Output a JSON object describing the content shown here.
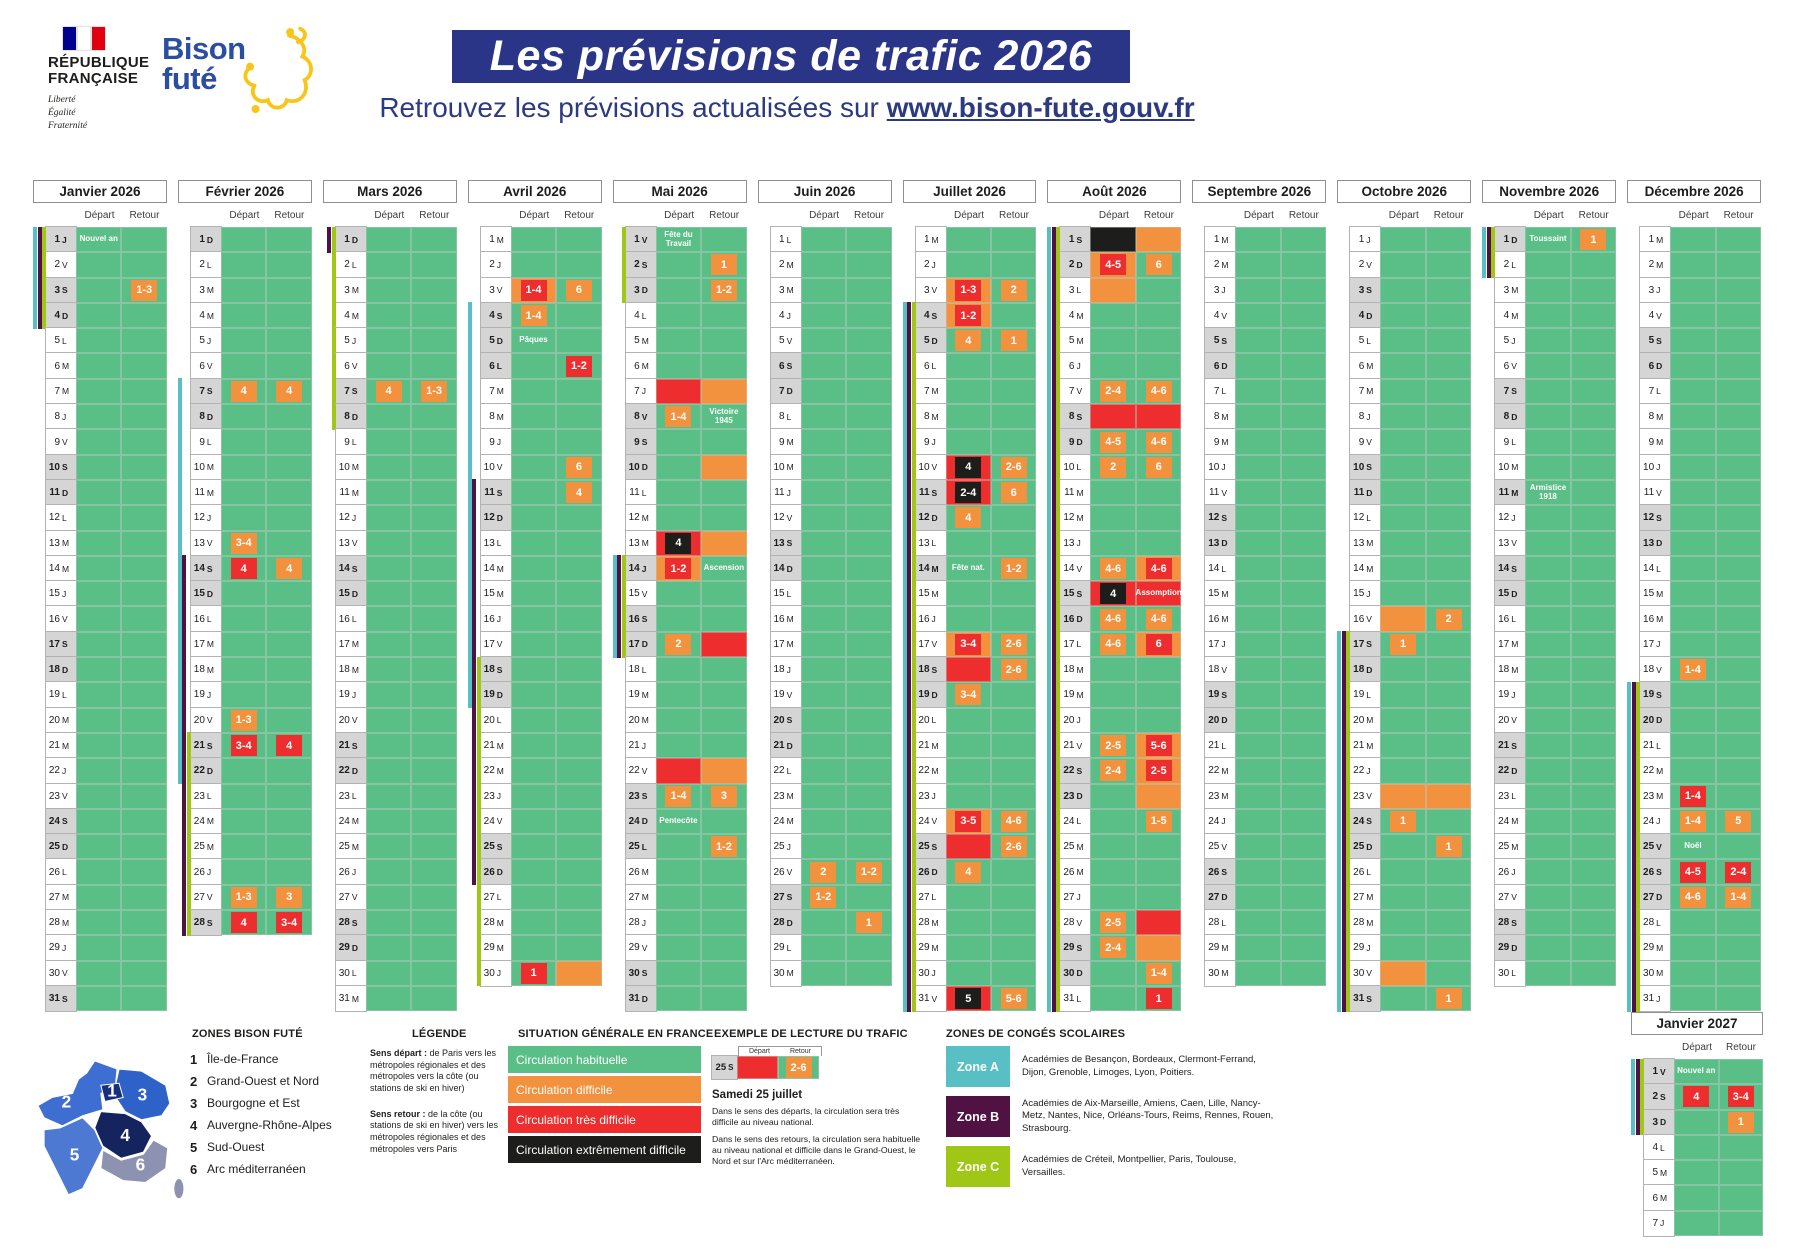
{
  "header": {
    "title": "Les prévisions de trafic 2026",
    "subtitle_prefix": "Retrouvez les prévisions actualisées sur ",
    "subtitle_link": "www.bison-fute.gouv.fr",
    "rf_logo": {
      "line1": "RÉPUBLIQUE",
      "line2": "FRANÇAISE",
      "motto1": "Liberté",
      "motto2": "Égalité",
      "motto3": "Fraternité"
    },
    "bison_logo": {
      "line1": "Bison",
      "line2": "futé"
    }
  },
  "colors": {
    "green": "#5abf87",
    "orange": "#f3923e",
    "red": "#ee2e2e",
    "black": "#1d1d1b",
    "day_off_bg": "#d5d5d5",
    "banner_blue": "#2b3588",
    "zone_a": "#58bfc4",
    "zone_b": "#4f1243",
    "zone_c": "#a0c715"
  },
  "calendar": {
    "depart": "Départ",
    "retour": "Retour",
    "weekday_letters": [
      "L",
      "M",
      "M",
      "J",
      "V",
      "S",
      "D"
    ]
  },
  "months": [
    {
      "title": "Janvier 2026",
      "start": 3,
      "days": 31,
      "hol": [
        1
      ],
      "bars": {
        "A": [
          [
            1,
            4
          ]
        ],
        "B": [
          [
            1,
            4
          ]
        ],
        "C": [
          [
            1,
            4
          ]
        ]
      },
      "e": {
        "1": {
          "d": {
            "tx": "Nouvel an"
          }
        },
        "3": {
          "r": {
            "b": "o",
            "t": "1-3"
          }
        }
      }
    },
    {
      "title": "Février 2026",
      "start": 6,
      "days": 28,
      "hol": [],
      "bars": {
        "A": [
          [
            7,
            22
          ]
        ],
        "B": [
          [
            14,
            28
          ]
        ],
        "C": [
          [
            21,
            28
          ]
        ]
      },
      "e": {
        "7": {
          "d": {
            "b": "o",
            "t": "4"
          },
          "r": {
            "b": "o",
            "t": "4"
          }
        },
        "13": {
          "d": {
            "b": "o",
            "t": "3-4"
          }
        },
        "14": {
          "d": {
            "b": "r",
            "t": "4"
          },
          "r": {
            "b": "o",
            "t": "4"
          }
        },
        "20": {
          "d": {
            "b": "o",
            "t": "1-3"
          }
        },
        "21": {
          "d": {
            "b": "r",
            "t": "3-4"
          },
          "r": {
            "b": "r",
            "t": "4"
          }
        },
        "27": {
          "d": {
            "b": "o",
            "t": "1-3"
          },
          "r": {
            "b": "o",
            "t": "3"
          }
        },
        "28": {
          "d": {
            "b": "r",
            "t": "4"
          },
          "r": {
            "b": "r",
            "t": "3-4"
          }
        }
      }
    },
    {
      "title": "Mars 2026",
      "start": 6,
      "days": 31,
      "hol": [],
      "bars": {
        "B": [
          [
            1,
            1
          ]
        ],
        "C": [
          [
            1,
            8
          ]
        ]
      },
      "e": {
        "7": {
          "d": {
            "b": "o",
            "t": "4"
          },
          "r": {
            "b": "o",
            "t": "1-3"
          }
        }
      }
    },
    {
      "title": "Avril 2026",
      "start": 2,
      "days": 30,
      "hol": [
        6
      ],
      "bars": {
        "A": [
          [
            4,
            19
          ]
        ],
        "B": [
          [
            11,
            26
          ]
        ],
        "C": [
          [
            18,
            30
          ]
        ]
      },
      "e": {
        "3": {
          "d": {
            "bg": "o",
            "b": "r",
            "t": "1-4"
          },
          "r": {
            "b": "o",
            "t": "6"
          }
        },
        "4": {
          "d": {
            "b": "o",
            "t": "1-4"
          }
        },
        "5": {
          "d": {
            "tx": "Pâques"
          }
        },
        "6": {
          "r": {
            "b": "r",
            "t": "1-2"
          }
        },
        "10": {
          "r": {
            "b": "o",
            "t": "6"
          }
        },
        "11": {
          "r": {
            "b": "o",
            "t": "4"
          }
        },
        "30": {
          "d": {
            "b": "r",
            "t": "1"
          },
          "r": {
            "bg": "o"
          }
        }
      }
    },
    {
      "title": "Mai 2026",
      "start": 4,
      "days": 31,
      "hol": [
        1,
        8,
        14,
        25
      ],
      "bars": {
        "A": [
          [
            14,
            17
          ]
        ],
        "B": [
          [
            14,
            17
          ]
        ],
        "C": [
          [
            1,
            3
          ],
          [
            14,
            17
          ]
        ]
      },
      "e": {
        "1": {
          "d": {
            "tx": "Fête du Travail"
          }
        },
        "2": {
          "r": {
            "b": "o",
            "t": "1"
          }
        },
        "3": {
          "r": {
            "b": "o",
            "t": "1-2"
          }
        },
        "7": {
          "d": {
            "bg": "r"
          },
          "r": {
            "bg": "o"
          }
        },
        "8": {
          "d": {
            "b": "o",
            "t": "1-4"
          },
          "r": {
            "tx": "Victoire 1945"
          }
        },
        "10": {
          "r": {
            "bg": "o"
          }
        },
        "13": {
          "d": {
            "bg": "r",
            "b": "k",
            "t": "4"
          },
          "r": {
            "bg": "o"
          }
        },
        "14": {
          "d": {
            "bg": "o",
            "b": "r",
            "t": "1-2"
          },
          "r": {
            "tx": "Ascension"
          }
        },
        "17": {
          "d": {
            "b": "o",
            "t": "2"
          },
          "r": {
            "bg": "r"
          }
        },
        "22": {
          "d": {
            "bg": "r"
          },
          "r": {
            "bg": "o"
          }
        },
        "23": {
          "d": {
            "b": "o",
            "t": "1-4"
          },
          "r": {
            "b": "o",
            "t": "3"
          }
        },
        "24": {
          "d": {
            "tx": "Pentecôte"
          }
        },
        "25": {
          "r": {
            "b": "o",
            "t": "1-2"
          }
        }
      }
    },
    {
      "title": "Juin 2026",
      "start": 0,
      "days": 30,
      "hol": [],
      "bars": {},
      "e": {
        "26": {
          "d": {
            "b": "o",
            "t": "2"
          },
          "r": {
            "b": "o",
            "t": "1-2"
          }
        },
        "27": {
          "d": {
            "b": "o",
            "t": "1-2"
          }
        },
        "28": {
          "r": {
            "b": "o",
            "t": "1"
          }
        }
      }
    },
    {
      "title": "Juillet 2026",
      "start": 2,
      "days": 31,
      "hol": [
        14
      ],
      "bars": {
        "A": [
          [
            4,
            31
          ]
        ],
        "B": [
          [
            4,
            31
          ]
        ],
        "C": [
          [
            4,
            31
          ]
        ]
      },
      "e": {
        "3": {
          "d": {
            "bg": "o",
            "b": "r",
            "t": "1-3"
          },
          "r": {
            "b": "o",
            "t": "2"
          }
        },
        "4": {
          "d": {
            "bg": "o",
            "b": "r",
            "t": "1-2"
          }
        },
        "5": {
          "d": {
            "b": "o",
            "t": "4"
          },
          "r": {
            "b": "o",
            "t": "1"
          }
        },
        "10": {
          "d": {
            "bg": "r",
            "b": "k",
            "t": "4"
          },
          "r": {
            "b": "o",
            "t": "2-6"
          }
        },
        "11": {
          "d": {
            "bg": "r",
            "b": "k",
            "t": "2-4"
          },
          "r": {
            "b": "o",
            "t": "6"
          }
        },
        "12": {
          "d": {
            "b": "o",
            "t": "4"
          }
        },
        "14": {
          "d": {
            "tx": "Fête nat."
          },
          "r": {
            "b": "o",
            "t": "1-2"
          }
        },
        "17": {
          "d": {
            "bg": "o",
            "b": "r",
            "t": "3-4"
          },
          "r": {
            "b": "o",
            "t": "2-6"
          }
        },
        "18": {
          "d": {
            "bg": "r"
          },
          "r": {
            "b": "o",
            "t": "2-6"
          }
        },
        "19": {
          "d": {
            "b": "o",
            "t": "3-4"
          }
        },
        "24": {
          "d": {
            "bg": "o",
            "b": "r",
            "t": "3-5"
          },
          "r": {
            "b": "o",
            "t": "4-6"
          }
        },
        "25": {
          "d": {
            "bg": "r"
          },
          "r": {
            "b": "o",
            "t": "2-6"
          }
        },
        "26": {
          "d": {
            "b": "o",
            "t": "4"
          }
        },
        "31": {
          "d": {
            "bg": "r",
            "b": "k",
            "t": "5"
          },
          "r": {
            "b": "o",
            "t": "5-6"
          }
        }
      }
    },
    {
      "title": "Août 2026",
      "start": 5,
      "days": 31,
      "hol": [
        15
      ],
      "bars": {
        "A": [
          [
            1,
            31
          ]
        ],
        "B": [
          [
            1,
            31
          ]
        ],
        "C": [
          [
            1,
            31
          ]
        ]
      },
      "e": {
        "1": {
          "d": {
            "bg": "k"
          },
          "r": {
            "bg": "o"
          }
        },
        "2": {
          "d": {
            "bg": "o",
            "b": "r",
            "t": "4-5"
          },
          "r": {
            "b": "o",
            "t": "6"
          }
        },
        "3": {
          "d": {
            "bg": "o"
          }
        },
        "7": {
          "d": {
            "b": "o",
            "t": "2-4"
          },
          "r": {
            "b": "o",
            "t": "4-6"
          }
        },
        "8": {
          "d": {
            "bg": "r"
          },
          "r": {
            "bg": "r"
          }
        },
        "9": {
          "d": {
            "b": "o",
            "t": "4-5"
          },
          "r": {
            "b": "o",
            "t": "4-6"
          }
        },
        "10": {
          "d": {
            "b": "o",
            "t": "2"
          },
          "r": {
            "b": "o",
            "t": "6"
          }
        },
        "14": {
          "d": {
            "b": "o",
            "t": "4-6"
          },
          "r": {
            "bg": "o",
            "b": "r",
            "t": "4-6"
          }
        },
        "15": {
          "d": {
            "bg": "r",
            "b": "k",
            "t": "4"
          },
          "r": {
            "bg": "r",
            "tx": "Assomption"
          }
        },
        "16": {
          "d": {
            "b": "o",
            "t": "4-6"
          },
          "r": {
            "b": "o",
            "t": "4-6"
          }
        },
        "17": {
          "d": {
            "b": "o",
            "t": "4-6"
          },
          "r": {
            "bg": "o",
            "b": "r",
            "t": "6"
          }
        },
        "21": {
          "d": {
            "b": "o",
            "t": "2-5"
          },
          "r": {
            "bg": "o",
            "b": "r",
            "t": "5-6"
          }
        },
        "22": {
          "d": {
            "b": "o",
            "t": "2-4"
          },
          "r": {
            "bg": "o",
            "b": "r",
            "t": "2-5"
          }
        },
        "23": {
          "r": {
            "bg": "o"
          }
        },
        "24": {
          "r": {
            "b": "o",
            "t": "1-5"
          }
        },
        "28": {
          "d": {
            "b": "o",
            "t": "2-5"
          },
          "r": {
            "bg": "r"
          }
        },
        "29": {
          "d": {
            "b": "o",
            "t": "2-4"
          },
          "r": {
            "bg": "o"
          }
        },
        "30": {
          "r": {
            "b": "o",
            "t": "1-4"
          }
        },
        "31": {
          "r": {
            "b": "r",
            "t": "1"
          }
        }
      }
    },
    {
      "title": "Septembre 2026",
      "start": 1,
      "days": 30,
      "hol": [],
      "bars": {},
      "e": {}
    },
    {
      "title": "Octobre 2026",
      "start": 3,
      "days": 31,
      "hol": [],
      "bars": {
        "A": [
          [
            17,
            31
          ]
        ],
        "B": [
          [
            17,
            31
          ]
        ],
        "C": [
          [
            17,
            31
          ]
        ]
      },
      "e": {
        "16": {
          "d": {
            "bg": "o"
          },
          "r": {
            "b": "o",
            "t": "2"
          }
        },
        "17": {
          "d": {
            "b": "o",
            "t": "1"
          }
        },
        "23": {
          "d": {
            "bg": "o"
          },
          "r": {
            "bg": "o"
          }
        },
        "24": {
          "d": {
            "b": "o",
            "t": "1"
          }
        },
        "25": {
          "r": {
            "b": "o",
            "t": "1"
          }
        },
        "30": {
          "d": {
            "bg": "o"
          }
        },
        "31": {
          "r": {
            "b": "o",
            "t": "1"
          }
        }
      }
    },
    {
      "title": "Novembre 2026",
      "start": 6,
      "days": 30,
      "hol": [
        1,
        11
      ],
      "bars": {
        "A": [
          [
            1,
            2
          ]
        ],
        "B": [
          [
            1,
            2
          ]
        ],
        "C": [
          [
            1,
            2
          ]
        ]
      },
      "e": {
        "1": {
          "d": {
            "tx": "Toussaint"
          },
          "r": {
            "b": "o",
            "t": "1"
          }
        },
        "11": {
          "d": {
            "tx": "Armistice 1918"
          }
        }
      }
    },
    {
      "title": "Décembre 2026",
      "start": 1,
      "days": 31,
      "hol": [
        25
      ],
      "bars": {
        "A": [
          [
            19,
            31
          ]
        ],
        "B": [
          [
            19,
            31
          ]
        ],
        "C": [
          [
            19,
            31
          ]
        ]
      },
      "e": {
        "18": {
          "d": {
            "b": "o",
            "t": "1-4"
          }
        },
        "23": {
          "d": {
            "b": "r",
            "t": "1-4"
          }
        },
        "24": {
          "d": {
            "b": "o",
            "t": "1-4"
          },
          "r": {
            "b": "o",
            "t": "5"
          }
        },
        "25": {
          "d": {
            "tx": "Noël"
          }
        },
        "26": {
          "d": {
            "b": "r",
            "t": "4-5"
          },
          "r": {
            "b": "r",
            "t": "2-4"
          }
        },
        "27": {
          "d": {
            "b": "o",
            "t": "4-6"
          },
          "r": {
            "b": "o",
            "t": "1-4"
          }
        }
      }
    },
    {
      "title": "Janvier 2027",
      "start": 4,
      "days": 7,
      "hol": [
        1
      ],
      "mini": true,
      "bars": {
        "A": [
          [
            1,
            3
          ]
        ],
        "B": [
          [
            1,
            3
          ]
        ],
        "C": [
          [
            1,
            3
          ]
        ]
      },
      "e": {
        "1": {
          "d": {
            "tx": "Nouvel an"
          }
        },
        "2": {
          "d": {
            "b": "r",
            "t": "4"
          },
          "r": {
            "b": "r",
            "t": "3-4"
          }
        },
        "3": {
          "r": {
            "b": "o",
            "t": "1"
          }
        }
      }
    }
  ],
  "zones_bison": {
    "title": "ZONES BISON FUTÉ",
    "items": [
      {
        "n": "1",
        "label": "Île-de-France"
      },
      {
        "n": "2",
        "label": "Grand-Ouest et Nord"
      },
      {
        "n": "3",
        "label": "Bourgogne et Est"
      },
      {
        "n": "4",
        "label": "Auvergne-Rhône-Alpes"
      },
      {
        "n": "5",
        "label": "Sud-Ouest"
      },
      {
        "n": "6",
        "label": "Arc méditerranéen"
      }
    ]
  },
  "legende": {
    "title": "LÉGENDE",
    "p1_bold": "Sens départ :",
    "p1": " de Paris vers les métropoles régionales et des métropoles vers la côte (ou stations de ski en hiver)",
    "p2_bold": "Sens retour :",
    "p2": " de la côte (ou stations de ski en hiver) vers les métropoles régionales et des métropoles vers Paris"
  },
  "situation": {
    "title": "SITUATION GÉNÉRALE EN FRANCE",
    "rows": [
      {
        "color": "green",
        "label": "Circulation habituelle"
      },
      {
        "color": "orange",
        "label": "Circulation difficile"
      },
      {
        "color": "red",
        "label": "Circulation très difficile"
      },
      {
        "color": "black",
        "label": "Circulation extrêmement difficile"
      }
    ]
  },
  "example": {
    "title": "EXEMPLE DE LECTURE DU TRAFIC",
    "day": "25",
    "weekday": "S",
    "retour_badge": "2-6",
    "caption": "Samedi 25 juillet",
    "p1": "Dans le sens des départs, la circulation sera très difficile au niveau national.",
    "p2": "Dans le sens des retours, la circulation sera habituelle au niveau national et difficile dans le Grand-Ouest, le Nord et sur l'Arc méditerranéen."
  },
  "conges": {
    "title": "ZONES DE CONGÉS SCOLAIRES",
    "zones": [
      {
        "label": "Zone A",
        "color": "zone_a",
        "text": "Académies de Besançon, Bordeaux, Clermont-Ferrand, Dijon, Grenoble, Limoges, Lyon, Poitiers."
      },
      {
        "label": "Zone B",
        "color": "zone_b",
        "text": "Académies de Aix-Marseille, Amiens, Caen, Lille, Nancy-Metz, Nantes, Nice, Orléans-Tours, Reims, Rennes, Rouen, Strasbourg."
      },
      {
        "label": "Zone C",
        "color": "zone_c",
        "text": "Académies de Créteil, Montpellier, Paris, Toulouse, Versailles."
      }
    ]
  }
}
